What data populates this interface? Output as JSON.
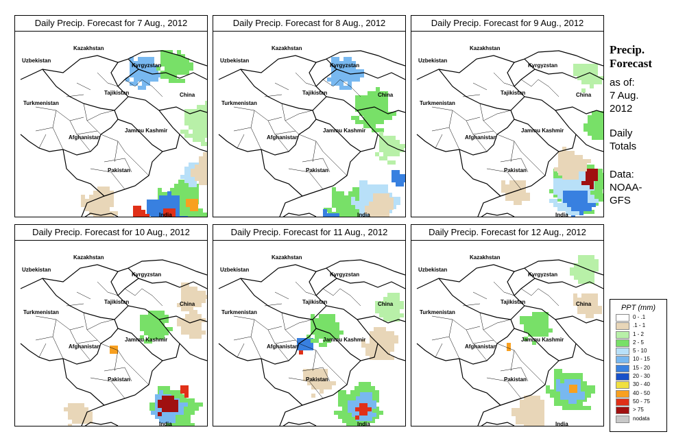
{
  "panels": [
    {
      "title": "Daily Precip. Forecast for  7 Aug., 2012"
    },
    {
      "title": "Daily Precip. Forecast for  8 Aug., 2012"
    },
    {
      "title": "Daily Precip. Forecast for  9 Aug., 2012"
    },
    {
      "title": "Daily Precip. Forecast for  10 Aug., 2012"
    },
    {
      "title": "Daily Precip. Forecast for  11 Aug., 2012"
    },
    {
      "title": "Daily Precip. Forecast for  12 Aug., 2012"
    }
  ],
  "map_labels": {
    "kazakhstan": "Kazakhstan",
    "uzbekistan": "Uzbekistan",
    "kyrgyzstan": "Kyrgyzstan",
    "tajikistan": "Tajikistan",
    "turkmenistan": "Turkmenistan",
    "china": "China",
    "jammu_kashmir": "Jammu Kashmir",
    "afghanistan": "Afghanistan",
    "pakistan": "Pakistan",
    "india": "India"
  },
  "side": {
    "title_line1": "Precip.",
    "title_line2": "Forecast",
    "asof_line1": "as of:",
    "asof_line2": "7 Aug.",
    "asof_line3": "2012",
    "totals_line1": "Daily",
    "totals_line2": "Totals",
    "data_line1": "Data:",
    "data_line2": "NOAA-",
    "data_line3": "GFS"
  },
  "legend": {
    "title": "PPT (mm)",
    "items": [
      {
        "label": "0 - .1",
        "color": "#ffffff"
      },
      {
        "label": ".1 - 1",
        "color": "#e8d6b8"
      },
      {
        "label": "1 - 2",
        "color": "#b8f0a8"
      },
      {
        "label": "2 - 5",
        "color": "#78e068"
      },
      {
        "label": "5 - 10",
        "color": "#b8e0f8"
      },
      {
        "label": "10 - 15",
        "color": "#78b8f0"
      },
      {
        "label": "15 - 20",
        "color": "#3880e0"
      },
      {
        "label": "20 - 30",
        "color": "#1850c8"
      },
      {
        "label": "30 - 40",
        "color": "#f0e040"
      },
      {
        "label": "40 - 50",
        "color": "#f8a020"
      },
      {
        "label": "50 - 75",
        "color": "#e03018"
      },
      {
        "label": "> 75",
        "color": "#a01010"
      },
      {
        "label": "nodata",
        "color": "#c8c8c8"
      }
    ]
  },
  "precip_patches": [
    [
      {
        "cx": 235,
        "cy": 255,
        "r": 45,
        "c": "#78e068"
      },
      {
        "cx": 215,
        "cy": 262,
        "r": 35,
        "c": "#3880e0"
      },
      {
        "cx": 180,
        "cy": 262,
        "r": 14,
        "c": "#e03018"
      },
      {
        "cx": 220,
        "cy": 268,
        "r": 16,
        "c": "#e03018"
      },
      {
        "cx": 255,
        "cy": 250,
        "r": 12,
        "c": "#f8a020"
      },
      {
        "cx": 255,
        "cy": 205,
        "r": 20,
        "c": "#b8e0f8"
      },
      {
        "cx": 185,
        "cy": 55,
        "r": 30,
        "c": "#78b8f0"
      },
      {
        "cx": 230,
        "cy": 45,
        "r": 30,
        "c": "#78e068"
      },
      {
        "cx": 270,
        "cy": 130,
        "r": 35,
        "c": "#b8f0a8"
      },
      {
        "cx": 120,
        "cy": 250,
        "r": 30,
        "c": "#e8d6b8"
      },
      {
        "cx": 280,
        "cy": 200,
        "r": 30,
        "c": "#e8d6b8"
      }
    ],
    [
      {
        "cx": 200,
        "cy": 260,
        "r": 45,
        "c": "#78e068"
      },
      {
        "cx": 235,
        "cy": 245,
        "r": 40,
        "c": "#b8e0f8"
      },
      {
        "cx": 170,
        "cy": 275,
        "r": 22,
        "c": "#3880e0"
      },
      {
        "cx": 175,
        "cy": 282,
        "r": 16,
        "c": "#a01010"
      },
      {
        "cx": 268,
        "cy": 210,
        "r": 14,
        "c": "#3880e0"
      },
      {
        "cx": 230,
        "cy": 110,
        "r": 35,
        "c": "#78e068"
      },
      {
        "cx": 190,
        "cy": 55,
        "r": 30,
        "c": "#78b8f0"
      },
      {
        "cx": 255,
        "cy": 165,
        "r": 25,
        "c": "#b8f0a8"
      },
      {
        "cx": 240,
        "cy": 255,
        "r": 25,
        "c": "#e8d6b8"
      }
    ],
    [
      {
        "cx": 245,
        "cy": 220,
        "r": 50,
        "c": "#78e068"
      },
      {
        "cx": 235,
        "cy": 230,
        "r": 40,
        "c": "#b8e0f8"
      },
      {
        "cx": 240,
        "cy": 245,
        "r": 25,
        "c": "#3880e0"
      },
      {
        "cx": 258,
        "cy": 210,
        "r": 16,
        "c": "#a01010"
      },
      {
        "cx": 255,
        "cy": 60,
        "r": 25,
        "c": "#b8f0a8"
      },
      {
        "cx": 270,
        "cy": 135,
        "r": 25,
        "c": "#78e068"
      },
      {
        "cx": 150,
        "cy": 230,
        "r": 25,
        "c": "#e8d6b8"
      },
      {
        "cx": 230,
        "cy": 190,
        "r": 28,
        "c": "#e8d6b8"
      }
    ],
    [
      {
        "cx": 230,
        "cy": 240,
        "r": 40,
        "c": "#78e068"
      },
      {
        "cx": 220,
        "cy": 240,
        "r": 28,
        "c": "#78b8f0"
      },
      {
        "cx": 220,
        "cy": 238,
        "r": 18,
        "c": "#a01010"
      },
      {
        "cx": 245,
        "cy": 215,
        "r": 10,
        "c": "#e03018"
      },
      {
        "cx": 140,
        "cy": 155,
        "r": 8,
        "c": "#f8a020"
      },
      {
        "cx": 200,
        "cy": 120,
        "r": 30,
        "c": "#78e068"
      },
      {
        "cx": 255,
        "cy": 80,
        "r": 25,
        "c": "#e8d6b8"
      },
      {
        "cx": 90,
        "cy": 250,
        "r": 25,
        "c": "#e8d6b8"
      },
      {
        "cx": 255,
        "cy": 120,
        "r": 25,
        "c": "#e8d6b8"
      }
    ],
    [
      {
        "cx": 210,
        "cy": 240,
        "r": 40,
        "c": "#78e068"
      },
      {
        "cx": 215,
        "cy": 240,
        "r": 25,
        "c": "#78b8f0"
      },
      {
        "cx": 215,
        "cy": 245,
        "r": 14,
        "c": "#e03018"
      },
      {
        "cx": 130,
        "cy": 150,
        "r": 14,
        "c": "#3880e0"
      },
      {
        "cx": 125,
        "cy": 160,
        "r": 6,
        "c": "#e03018"
      },
      {
        "cx": 160,
        "cy": 125,
        "r": 30,
        "c": "#78e068"
      },
      {
        "cx": 255,
        "cy": 95,
        "r": 25,
        "c": "#b8f0a8"
      },
      {
        "cx": 150,
        "cy": 200,
        "r": 25,
        "c": "#e8d6b8"
      },
      {
        "cx": 240,
        "cy": 150,
        "r": 30,
        "c": "#e8d6b8"
      }
    ],
    [
      {
        "cx": 230,
        "cy": 215,
        "r": 40,
        "c": "#78e068"
      },
      {
        "cx": 230,
        "cy": 215,
        "r": 25,
        "c": "#78b8f0"
      },
      {
        "cx": 232,
        "cy": 212,
        "r": 8,
        "c": "#f8a020"
      },
      {
        "cx": 140,
        "cy": 150,
        "r": 7,
        "c": "#f8a020"
      },
      {
        "cx": 180,
        "cy": 120,
        "r": 28,
        "c": "#78e068"
      },
      {
        "cx": 255,
        "cy": 90,
        "r": 25,
        "c": "#e8d6b8"
      },
      {
        "cx": 250,
        "cy": 40,
        "r": 25,
        "c": "#b8f0a8"
      },
      {
        "cx": 170,
        "cy": 250,
        "r": 30,
        "c": "#e8d6b8"
      }
    ]
  ]
}
